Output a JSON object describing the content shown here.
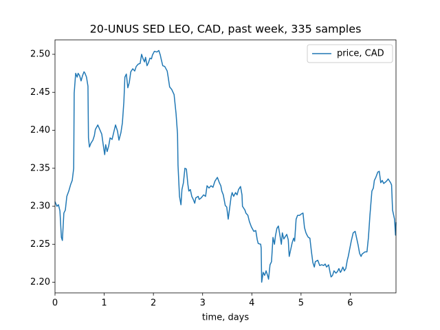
{
  "chart_data": {
    "type": "line",
    "title": "20-UNUS SED LEO, CAD, past week, 335 samples",
    "x_label": "time, days",
    "x": [
      0,
      0.04,
      0.07,
      0.1,
      0.13,
      0.15,
      0.18,
      0.21,
      0.24,
      0.28,
      0.32,
      0.35,
      0.38,
      0.39,
      0.42,
      0.45,
      0.47,
      0.5,
      0.53,
      0.56,
      0.59,
      0.61,
      0.64,
      0.67,
      0.68,
      0.7,
      0.73,
      0.77,
      0.8,
      0.82,
      0.87,
      0.91,
      0.95,
      0.98,
      1.01,
      1.03,
      1.06,
      1.09,
      1.12,
      1.16,
      1.2,
      1.23,
      1.27,
      1.3,
      1.34,
      1.37,
      1.4,
      1.42,
      1.45,
      1.48,
      1.51,
      1.54,
      1.58,
      1.62,
      1.65,
      1.69,
      1.73,
      1.76,
      1.79,
      1.82,
      1.84,
      1.87,
      1.9,
      1.93,
      1.96,
      1.98,
      2.02,
      2.07,
      2.11,
      2.14,
      2.16,
      2.19,
      2.23,
      2.28,
      2.3,
      2.33,
      2.37,
      2.42,
      2.46,
      2.49,
      2.5,
      2.53,
      2.56,
      2.58,
      2.61,
      2.64,
      2.67,
      2.7,
      2.72,
      2.75,
      2.78,
      2.81,
      2.84,
      2.86,
      2.91,
      2.93,
      2.97,
      3.02,
      3.06,
      3.09,
      3.13,
      3.17,
      3.21,
      3.25,
      3.3,
      3.34,
      3.37,
      3.39,
      3.42,
      3.46,
      3.49,
      3.52,
      3.55,
      3.58,
      3.6,
      3.63,
      3.67,
      3.7,
      3.73,
      3.77,
      3.8,
      3.81,
      3.86,
      3.88,
      3.92,
      3.95,
      3.99,
      4.04,
      4.08,
      4.11,
      4.13,
      4.18,
      4.19,
      4.2,
      4.23,
      4.26,
      4.29,
      4.32,
      4.34,
      4.37,
      4.4,
      4.43,
      4.46,
      4.48,
      4.51,
      4.54,
      4.57,
      4.6,
      4.62,
      4.65,
      4.68,
      4.71,
      4.74,
      4.76,
      4.79,
      4.82,
      4.85,
      4.87,
      4.9,
      4.93,
      4.97,
      5.01,
      5.04,
      5.07,
      5.1,
      5.13,
      5.15,
      5.18,
      5.21,
      5.24,
      5.27,
      5.29,
      5.34,
      5.38,
      5.42,
      5.46,
      5.49,
      5.52,
      5.56,
      5.59,
      5.61,
      5.64,
      5.67,
      5.71,
      5.74,
      5.77,
      5.8,
      5.82,
      5.85,
      5.88,
      5.91,
      5.94,
      5.96,
      5.99,
      6.02,
      6.06,
      6.1,
      6.13,
      6.16,
      6.19,
      6.22,
      6.24,
      6.3,
      6.34,
      6.37,
      6.4,
      6.44,
      6.47,
      6.49,
      6.52,
      6.56,
      6.59,
      6.62,
      6.65,
      6.68,
      6.72,
      6.75,
      6.77,
      6.82,
      6.84,
      6.86,
      6.9,
      6.92,
      6.93
    ],
    "series": [
      {
        "name": "price, CAD",
        "color": "#1f77b4",
        "values": [
          2.306,
          2.3,
          2.302,
          2.294,
          2.259,
          2.255,
          2.291,
          2.295,
          2.313,
          2.32,
          2.329,
          2.334,
          2.35,
          2.449,
          2.475,
          2.47,
          2.475,
          2.472,
          2.465,
          2.472,
          2.477,
          2.475,
          2.47,
          2.458,
          2.39,
          2.378,
          2.383,
          2.387,
          2.393,
          2.401,
          2.407,
          2.401,
          2.395,
          2.381,
          2.368,
          2.381,
          2.372,
          2.379,
          2.39,
          2.388,
          2.399,
          2.407,
          2.399,
          2.387,
          2.397,
          2.41,
          2.438,
          2.47,
          2.474,
          2.456,
          2.463,
          2.477,
          2.481,
          2.478,
          2.484,
          2.487,
          2.488,
          2.5,
          2.494,
          2.49,
          2.496,
          2.485,
          2.489,
          2.495,
          2.494,
          2.499,
          2.504,
          2.503,
          2.505,
          2.499,
          2.493,
          2.485,
          2.484,
          2.478,
          2.47,
          2.457,
          2.454,
          2.447,
          2.422,
          2.395,
          2.354,
          2.313,
          2.302,
          2.322,
          2.331,
          2.35,
          2.349,
          2.329,
          2.32,
          2.322,
          2.313,
          2.309,
          2.304,
          2.311,
          2.313,
          2.309,
          2.311,
          2.315,
          2.313,
          2.327,
          2.324,
          2.327,
          2.325,
          2.333,
          2.338,
          2.331,
          2.327,
          2.32,
          2.315,
          2.301,
          2.299,
          2.283,
          2.298,
          2.313,
          2.318,
          2.313,
          2.318,
          2.315,
          2.322,
          2.326,
          2.315,
          2.3,
          2.295,
          2.291,
          2.288,
          2.28,
          2.273,
          2.267,
          2.268,
          2.256,
          2.251,
          2.25,
          2.245,
          2.2,
          2.213,
          2.209,
          2.215,
          2.209,
          2.204,
          2.223,
          2.227,
          2.259,
          2.25,
          2.261,
          2.271,
          2.274,
          2.262,
          2.25,
          2.265,
          2.257,
          2.26,
          2.263,
          2.256,
          2.234,
          2.243,
          2.252,
          2.258,
          2.254,
          2.283,
          2.288,
          2.288,
          2.29,
          2.291,
          2.272,
          2.265,
          2.261,
          2.259,
          2.258,
          2.241,
          2.226,
          2.22,
          2.227,
          2.229,
          2.222,
          2.223,
          2.222,
          2.224,
          2.22,
          2.223,
          2.213,
          2.207,
          2.209,
          2.215,
          2.212,
          2.214,
          2.218,
          2.213,
          2.215,
          2.22,
          2.215,
          2.218,
          2.229,
          2.234,
          2.244,
          2.254,
          2.265,
          2.267,
          2.258,
          2.249,
          2.238,
          2.234,
          2.237,
          2.24,
          2.24,
          2.259,
          2.288,
          2.32,
          2.324,
          2.334,
          2.338,
          2.345,
          2.346,
          2.331,
          2.334,
          2.33,
          2.332,
          2.334,
          2.336,
          2.331,
          2.328,
          2.295,
          2.283,
          2.262,
          2.279
        ]
      }
    ],
    "xlim": [
      0,
      6.93
    ],
    "xticks": [
      0,
      1,
      2,
      3,
      4,
      5,
      6
    ],
    "ylim": [
      2.186,
      2.519
    ],
    "yticks": [
      {
        "value": 2.2,
        "label": "2.20"
      },
      {
        "value": 2.25,
        "label": "2.25"
      },
      {
        "value": 2.3,
        "label": "2.30"
      },
      {
        "value": 2.35,
        "label": "2.35"
      },
      {
        "value": 2.4,
        "label": "2.40"
      },
      {
        "value": 2.45,
        "label": "2.45"
      },
      {
        "value": 2.5,
        "label": "2.50"
      }
    ],
    "legend": "upper right",
    "grid": false
  }
}
